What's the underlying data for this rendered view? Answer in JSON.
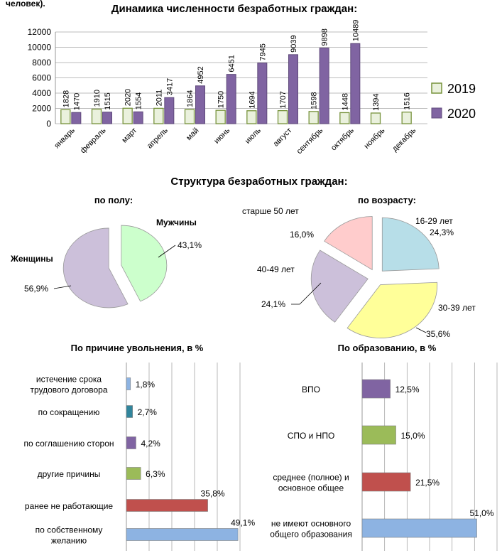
{
  "top_fragment": "человек).",
  "section_structure_title": "Структура безработных граждан:",
  "chart_data": [
    {
      "type": "bar",
      "title": "Динамика численности безработных граждан:",
      "categories": [
        "январь",
        "февраль",
        "март",
        "апрель",
        "май",
        "июнь",
        "июль",
        "август",
        "сентябрь",
        "октябрь",
        "ноябрь",
        "декабрь"
      ],
      "series": [
        {
          "name": "2019",
          "values": [
            1828,
            1910,
            2020,
            2011,
            1864,
            1750,
            1694,
            1707,
            1598,
            1448,
            1394,
            1516
          ],
          "color": "#eaf1dd",
          "stroke": "#77933c"
        },
        {
          "name": "2020",
          "values": [
            1470,
            1515,
            1554,
            3417,
            4952,
            6451,
            7945,
            9039,
            9898,
            10489,
            null,
            null
          ],
          "color": "#8064a2",
          "stroke": "#5f4a7b"
        }
      ],
      "yticks": [
        "0",
        "2000",
        "4000",
        "6000",
        "8000",
        "10000",
        "12000"
      ],
      "ylim": [
        0,
        12000
      ],
      "grid": true,
      "legend": "right"
    },
    {
      "type": "pie",
      "title": "по полу:",
      "labels": [
        "Мужчины",
        "Женщины"
      ],
      "values": [
        43.1,
        56.9
      ],
      "value_labels": [
        "43,1%",
        "56,9%"
      ],
      "colors": [
        "#ccffcc",
        "#ccc0da"
      ]
    },
    {
      "type": "pie",
      "title": "по возрасту:",
      "labels": [
        "16-29 лет",
        "30-39 лет",
        "40-49 лет",
        "старше 50 лет"
      ],
      "values": [
        24.3,
        35.6,
        24.1,
        16.0
      ],
      "value_labels": [
        "24,3%",
        "35,6%",
        "24,1%",
        "16,0%"
      ],
      "colors": [
        "#b7dee8",
        "#ffff99",
        "#ccc0da",
        "#ffcccc"
      ]
    },
    {
      "type": "bar",
      "title": "По причине увольнения, в %",
      "categories": [
        "истечение срока трудового договора",
        "по сокращению",
        "по соглашению сторон",
        "другие причины",
        "ранее не работающие",
        "по собственному желанию"
      ],
      "values": [
        1.8,
        2.7,
        4.2,
        6.3,
        35.8,
        49.1
      ],
      "value_labels": [
        "1,8%",
        "2,7%",
        "4,2%",
        "6,3%",
        "35,8%",
        "49,1%"
      ],
      "colors": [
        "#8db3e2",
        "#31859c",
        "#8064a2",
        "#9bbb59",
        "#c0504d",
        "#8db3e2"
      ],
      "xlim": [
        0,
        50
      ],
      "grid": true
    },
    {
      "type": "bar",
      "title": "По образованию, в %",
      "categories": [
        "ВПО",
        "СПО и НПО",
        "среднее (полное) и основное общее",
        "не имеют основного общего образования"
      ],
      "values": [
        12.5,
        15.0,
        21.5,
        51.0
      ],
      "value_labels": [
        "12,5%",
        "15,0%",
        "21,5%",
        "51,0%"
      ],
      "colors": [
        "#8064a2",
        "#9bbb59",
        "#c0504d",
        "#8db3e2"
      ],
      "xlim": [
        0,
        60
      ],
      "grid": true
    }
  ]
}
